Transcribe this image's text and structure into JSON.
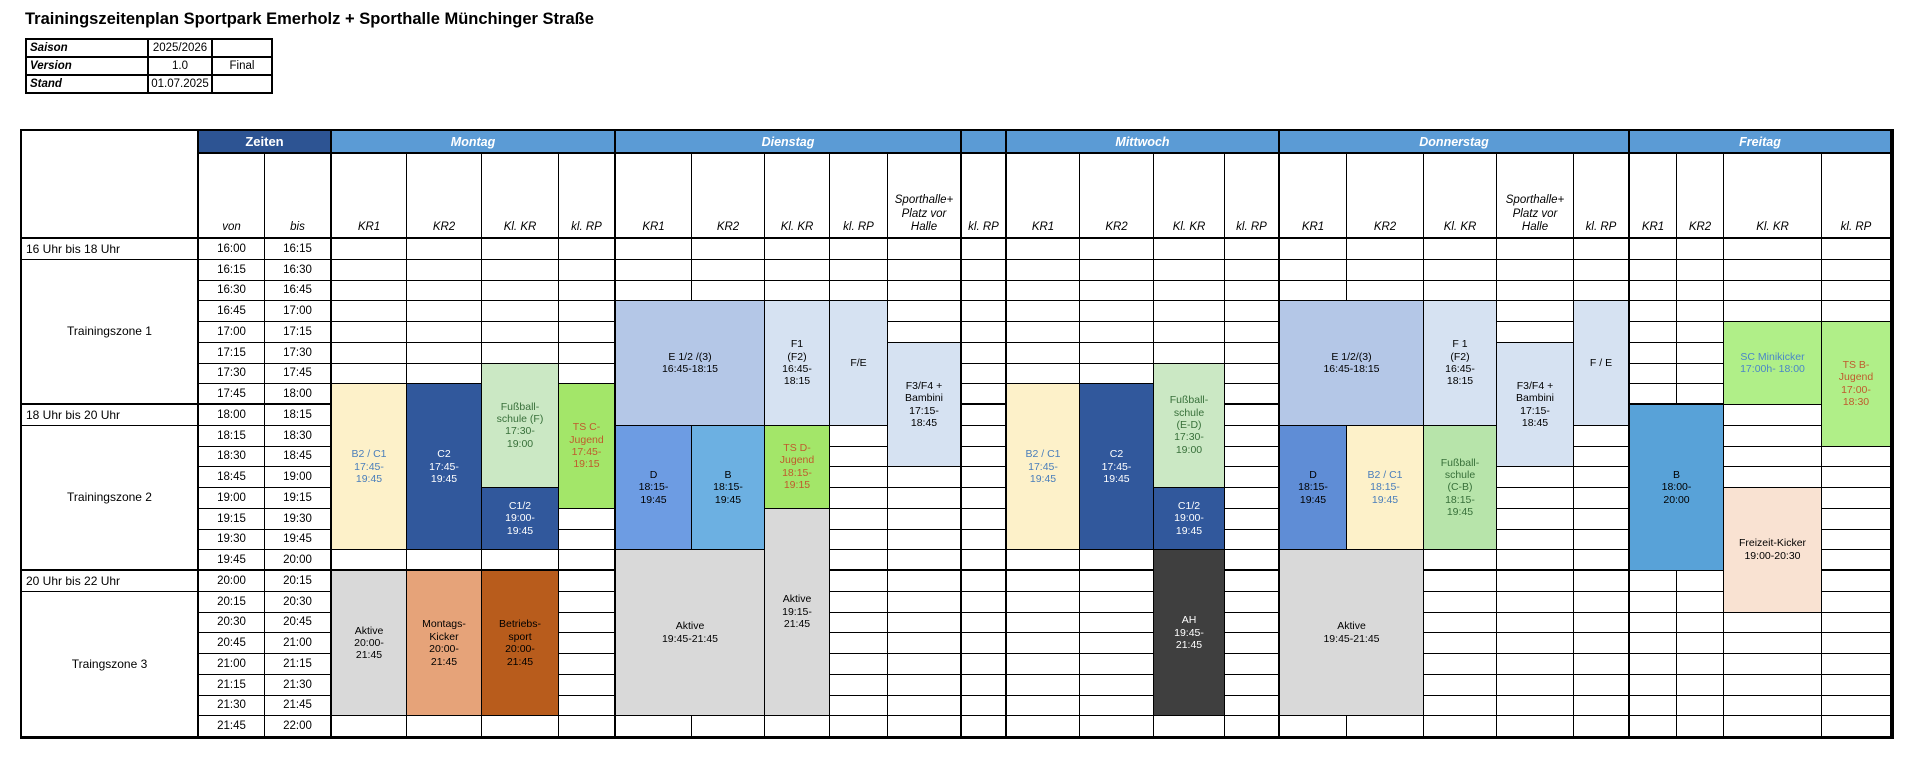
{
  "title": "Trainingszeitenplan Sportpark Emerholz + Sporthalle Münchinger Straße",
  "info": {
    "rows": [
      {
        "label": "Saison",
        "value": "2025/2026",
        "note": ""
      },
      {
        "label": "Version",
        "value": "1.0",
        "note": "Final"
      },
      {
        "label": "Stand",
        "value": "01.07.2025",
        "note": ""
      }
    ]
  },
  "zeiten_label": "Zeiten",
  "time_header": {
    "von": "von",
    "bis": "bis"
  },
  "zones": [
    {
      "label": "16 Uhr bis 18 Uhr",
      "kind": "range",
      "from": "16:00",
      "to": "16:15"
    },
    {
      "label": "Trainingszone 1",
      "kind": "span",
      "from": "16:15",
      "to": "18:00"
    },
    {
      "label": "18 Uhr bis 20 Uhr",
      "kind": "range",
      "from": "18:00",
      "to": "18:15"
    },
    {
      "label": "Trainingszone 2",
      "kind": "span",
      "from": "18:15",
      "to": "20:00"
    },
    {
      "label": "20 Uhr bis 22 Uhr",
      "kind": "range",
      "from": "20:00",
      "to": "20:15"
    },
    {
      "label": "Traingszone 3",
      "kind": "span",
      "from": "20:15",
      "to": "22:00"
    }
  ],
  "time_rows": [
    {
      "von": "16:00",
      "bis": "16:15"
    },
    {
      "von": "16:15",
      "bis": "16:30"
    },
    {
      "von": "16:30",
      "bis": "16:45"
    },
    {
      "von": "16:45",
      "bis": "17:00"
    },
    {
      "von": "17:00",
      "bis": "17:15"
    },
    {
      "von": "17:15",
      "bis": "17:30"
    },
    {
      "von": "17:30",
      "bis": "17:45"
    },
    {
      "von": "17:45",
      "bis": "18:00"
    },
    {
      "von": "18:00",
      "bis": "18:15"
    },
    {
      "von": "18:15",
      "bis": "18:30"
    },
    {
      "von": "18:30",
      "bis": "18:45"
    },
    {
      "von": "18:45",
      "bis": "19:00"
    },
    {
      "von": "19:00",
      "bis": "19:15"
    },
    {
      "von": "19:15",
      "bis": "19:30"
    },
    {
      "von": "19:30",
      "bis": "19:45"
    },
    {
      "von": "19:45",
      "bis": "20:00"
    },
    {
      "von": "20:00",
      "bis": "20:15"
    },
    {
      "von": "20:15",
      "bis": "20:30"
    },
    {
      "von": "20:30",
      "bis": "20:45"
    },
    {
      "von": "20:45",
      "bis": "21:00"
    },
    {
      "von": "21:00",
      "bis": "21:15"
    },
    {
      "von": "21:15",
      "bis": "21:30"
    },
    {
      "von": "21:30",
      "bis": "21:45"
    },
    {
      "von": "21:45",
      "bis": "22:00"
    }
  ],
  "day_groups": [
    {
      "key": "montag",
      "label": "Montag",
      "columns": [
        {
          "key": "kr1",
          "label": "KR1"
        },
        {
          "key": "kr2",
          "label": "KR2"
        },
        {
          "key": "klkr",
          "label": "Kl. KR"
        },
        {
          "key": "klrp",
          "label": "kl. RP"
        }
      ]
    },
    {
      "key": "dienstag",
      "label": "Dienstag",
      "columns": [
        {
          "key": "kr1",
          "label": "KR1"
        },
        {
          "key": "kr2",
          "label": "KR2"
        },
        {
          "key": "klkr",
          "label": "Kl. KR"
        },
        {
          "key": "klrp",
          "label": "kl. RP"
        },
        {
          "key": "sporthalle",
          "label": "Sporthalle+\nPlatz vor\nHalle"
        }
      ]
    },
    {
      "key": "sep",
      "label": "",
      "columns": [
        {
          "key": "klrp",
          "label": "kl. RP"
        }
      ]
    },
    {
      "key": "mittwoch",
      "label": "Mittwoch",
      "columns": [
        {
          "key": "kr1",
          "label": "KR1"
        },
        {
          "key": "kr2",
          "label": "KR2"
        },
        {
          "key": "klkr",
          "label": "Kl. KR"
        },
        {
          "key": "klrp",
          "label": "kl. RP"
        }
      ]
    },
    {
      "key": "donnerstag",
      "label": "Donnerstag",
      "columns": [
        {
          "key": "kr1",
          "label": "KR1"
        },
        {
          "key": "kr2",
          "label": "KR2"
        },
        {
          "key": "klkr",
          "label": "Kl. KR"
        },
        {
          "key": "sporthalle",
          "label": "Sporthalle+\nPlatz vor\nHalle"
        },
        {
          "key": "klrp",
          "label": "kl. RP"
        }
      ]
    },
    {
      "key": "freitag",
      "label": "Freitag",
      "columns": [
        {
          "key": "kr1",
          "label": "KR1"
        },
        {
          "key": "kr2",
          "label": "KR2"
        },
        {
          "key": "klkr",
          "label": "Kl. KR"
        },
        {
          "key": "klrp",
          "label": "kl. RP"
        }
      ]
    }
  ],
  "blocks": [
    {
      "day": "montag",
      "col": "kr1",
      "from": "17:45",
      "to": "19:45",
      "label": "B2 / C1\n17:45-\n19:45",
      "bg": "cream",
      "fg": "cream_text"
    },
    {
      "day": "montag",
      "col": "kr2",
      "from": "17:45",
      "to": "19:45",
      "label": "C2\n17:45-\n19:45",
      "bg": "dark_blue",
      "fg": "white"
    },
    {
      "day": "montag",
      "col": "klkr",
      "from": "17:30",
      "to": "19:00",
      "label": "Fußball-\nschule (F)\n17:30-\n19:00",
      "bg": "pale_green",
      "fg": "green_text"
    },
    {
      "day": "montag",
      "col": "klkr",
      "from": "19:00",
      "to": "19:45",
      "label": "C1/2\n19:00-\n19:45",
      "bg": "dark_blue",
      "fg": "white"
    },
    {
      "day": "montag",
      "col": "klrp",
      "from": "17:45",
      "to": "19:15",
      "label": "TS C-\nJugend\n17:45-\n19:15",
      "bg": "bright_green",
      "fg": "ts_text"
    },
    {
      "day": "montag",
      "col": "kr1",
      "from": "20:00",
      "to": "21:45",
      "label": "Aktive\n20:00-\n21:45",
      "bg": "gray",
      "fg": "black"
    },
    {
      "day": "montag",
      "col": "kr2",
      "from": "20:00",
      "to": "21:45",
      "label": "Montags-\nKicker\n20:00-\n21:45",
      "bg": "salmon",
      "fg": "black"
    },
    {
      "day": "montag",
      "col": "klkr",
      "from": "20:00",
      "to": "21:45",
      "label": "Betriebs-\nsport\n20:00-\n21:45",
      "bg": "brown",
      "fg": "black"
    },
    {
      "day": "dienstag",
      "col": "kr1",
      "span": 2,
      "from": "16:45",
      "to": "18:15",
      "label": "E 1/2 /(3)\n16:45-18:15",
      "bg": "mid_blue",
      "fg": "black"
    },
    {
      "day": "dienstag",
      "col": "klkr",
      "from": "16:45",
      "to": "18:15",
      "label": "F1\n(F2)\n16:45-\n18:15",
      "bg": "pale_blue",
      "fg": "black"
    },
    {
      "day": "dienstag",
      "col": "klrp",
      "from": "16:45",
      "to": "18:15",
      "label": "F/E",
      "bg": "pale_blue",
      "fg": "black"
    },
    {
      "day": "dienstag",
      "col": "sporthalle",
      "from": "17:15",
      "to": "18:45",
      "label": "F3/F4 +\nBambini\n17:15-\n18:45",
      "bg": "pale_blue",
      "fg": "black"
    },
    {
      "day": "dienstag",
      "col": "kr1",
      "from": "18:15",
      "to": "19:45",
      "label": "D\n18:15-\n19:45",
      "bg": "di_d_blue",
      "fg": "black"
    },
    {
      "day": "dienstag",
      "col": "kr2",
      "from": "18:15",
      "to": "19:45",
      "label": "B\n18:15-\n19:45",
      "bg": "di_b_blue",
      "fg": "black"
    },
    {
      "day": "dienstag",
      "col": "klkr",
      "from": "18:15",
      "to": "19:15",
      "label": "TS D-\nJugend\n18:15-\n19:15",
      "bg": "bright_green",
      "fg": "ts_text"
    },
    {
      "day": "dienstag",
      "col": "klkr",
      "from": "19:15",
      "to": "21:45",
      "label": "Aktive\n19:15-\n21:45",
      "bg": "gray",
      "fg": "black"
    },
    {
      "day": "dienstag",
      "col": "kr1",
      "span": 2,
      "from": "19:45",
      "to": "21:45",
      "label": "Aktive\n19:45-21:45",
      "bg": "gray",
      "fg": "black"
    },
    {
      "day": "mittwoch",
      "col": "kr1",
      "from": "17:45",
      "to": "19:45",
      "label": "B2 / C1\n17:45-\n19:45",
      "bg": "cream",
      "fg": "cream_text"
    },
    {
      "day": "mittwoch",
      "col": "kr2",
      "from": "17:45",
      "to": "19:45",
      "label": "C2\n17:45-\n19:45",
      "bg": "dark_blue",
      "fg": "white"
    },
    {
      "day": "mittwoch",
      "col": "klkr",
      "from": "17:30",
      "to": "19:00",
      "label": "Fußball-\nschule\n(E-D)\n17:30-\n19:00",
      "bg": "pale_green",
      "fg": "green_text"
    },
    {
      "day": "mittwoch",
      "col": "klkr",
      "from": "19:00",
      "to": "19:45",
      "label": "C1/2\n19:00-\n19:45",
      "bg": "dark_blue",
      "fg": "white"
    },
    {
      "day": "mittwoch",
      "col": "klkr",
      "from": "19:45",
      "to": "21:45",
      "label": "AH\n19:45-\n21:45",
      "bg": "dark_gray",
      "fg": "white"
    },
    {
      "day": "donnerstag",
      "col": "kr1",
      "span": 2,
      "from": "16:45",
      "to": "18:15",
      "label": "E 1/2/(3)\n16:45-18:15",
      "bg": "mid_blue",
      "fg": "black"
    },
    {
      "day": "donnerstag",
      "col": "klkr",
      "from": "16:45",
      "to": "18:15",
      "label": "F 1\n(F2)\n16:45-\n18:15",
      "bg": "pale_blue",
      "fg": "black"
    },
    {
      "day": "donnerstag",
      "col": "sporthalle",
      "from": "17:15",
      "to": "18:45",
      "label": "F3/F4 +\nBambini\n17:15-\n18:45",
      "bg": "pale_blue",
      "fg": "black"
    },
    {
      "day": "donnerstag",
      "col": "klrp",
      "from": "16:45",
      "to": "18:15",
      "label": "F / E",
      "bg": "pale_blue",
      "fg": "black"
    },
    {
      "day": "donnerstag",
      "col": "kr1",
      "from": "18:15",
      "to": "19:45",
      "label": "D\n18:15-\n19:45",
      "bg": "do_d_blue",
      "fg": "black"
    },
    {
      "day": "donnerstag",
      "col": "kr2",
      "from": "18:15",
      "to": "19:45",
      "label": "B2 / C1\n18:15-\n19:45",
      "bg": "cream",
      "fg": "cream_text"
    },
    {
      "day": "donnerstag",
      "col": "klkr",
      "from": "18:15",
      "to": "19:45",
      "label": "Fußball-\nschule\n(C-B)\n18:15-\n19:45",
      "bg": "pale_green_sat",
      "fg": "green_text"
    },
    {
      "day": "donnerstag",
      "col": "kr1",
      "span": 2,
      "from": "19:45",
      "to": "21:45",
      "label": "Aktive\n19:45-21:45",
      "bg": "gray",
      "fg": "black"
    },
    {
      "day": "freitag",
      "col": "klkr",
      "from": "17:00",
      "to": "18:00",
      "label": "SC Minikicker\n17:00h- 18:00",
      "bg": "bright_green_light",
      "fg": "minikicker_text"
    },
    {
      "day": "freitag",
      "col": "klrp",
      "from": "17:00",
      "to": "18:30",
      "label": "TS B-\nJugend\n17:00-\n18:30",
      "bg": "bright_green_light",
      "fg": "ts_text"
    },
    {
      "day": "freitag",
      "col": "kr1",
      "span": 2,
      "from": "18:00",
      "to": "20:00",
      "label": "B\n18:00-\n20:00",
      "bg": "fr_b_blue",
      "fg": "black"
    },
    {
      "day": "freitag",
      "col": "klkr",
      "from": "19:00",
      "to": "20:30",
      "label": "Freizeit-Kicker\n19:00-20:30",
      "bg": "peach",
      "fg": "black"
    }
  ],
  "colors": {
    "band_blue": "#5b9bd5",
    "zeiten_navy": "#2d5493",
    "cream": "#fdf1c9",
    "cream_text": "#4a7ebb",
    "dark_blue": "#31589c",
    "pale_green": "#cbe8c4",
    "pale_green_sat": "#b7e4aa",
    "green_text": "#38703a",
    "bright_green": "#a3e669",
    "bright_green_light": "#b0ef88",
    "ts_text": "#bf5b2d",
    "minikicker_text": "#4a86c8",
    "mid_blue": "#b4c7e7",
    "pale_blue": "#d6e2f2",
    "di_d_blue": "#6d9ce3",
    "di_b_blue": "#6cb0e2",
    "do_d_blue": "#5f8dd6",
    "fr_b_blue": "#58a2d8",
    "gray": "#d9d9d9",
    "dark_gray": "#3f3f3f",
    "salmon": "#e6a379",
    "brown": "#b85c1c",
    "peach": "#f9e2d2",
    "white": "#ffffff",
    "black": "#000000"
  }
}
